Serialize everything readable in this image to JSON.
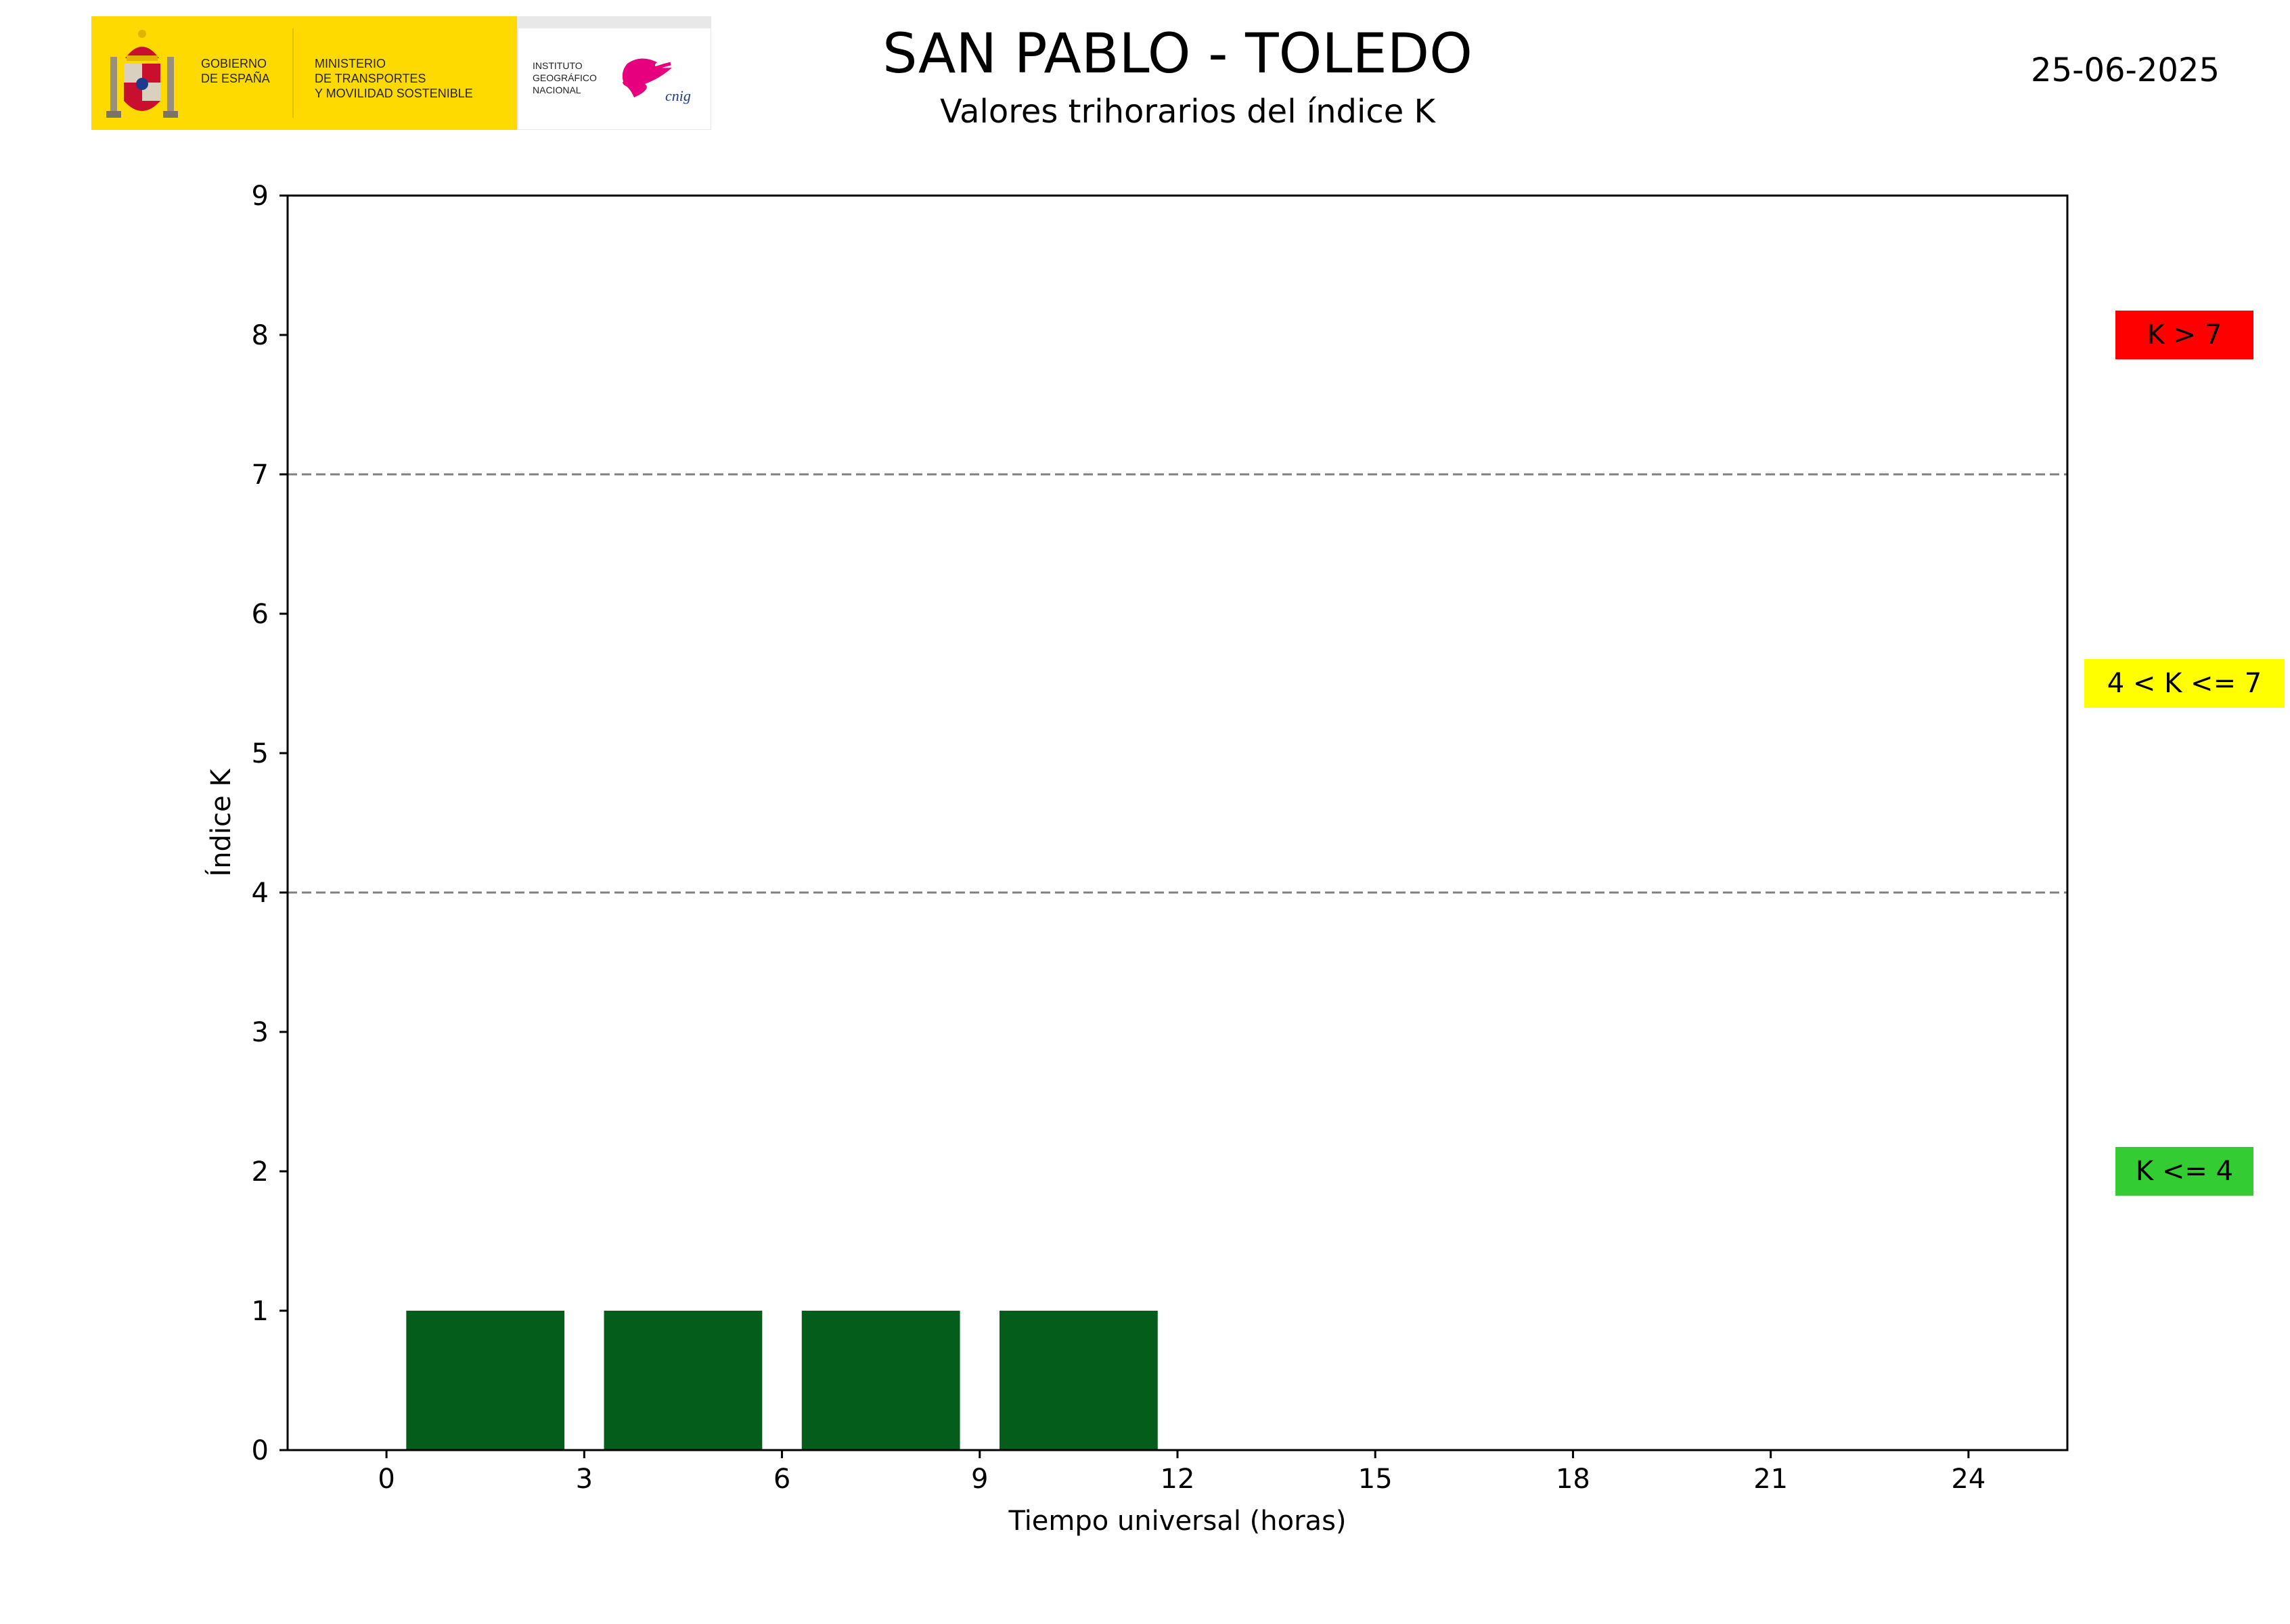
{
  "header": {
    "title": "SAN PABLO - TOLEDO",
    "subtitle": "Valores trihorarios del índice K",
    "date": "25-06-2025"
  },
  "logo": {
    "gov_line1": "GOBIERNO",
    "gov_line2": "DE ESPAÑA",
    "min_line1": "MINISTERIO",
    "min_line2": "DE TRANSPORTES",
    "min_line3": "Y MOVILIDAD SOSTENIBLE",
    "ign_line1": "INSTITUTO",
    "ign_line2": "GEOGRÁFICO",
    "ign_line3": "NACIONAL",
    "cnig": "cnig",
    "colors": {
      "yellow": "#FFDA00",
      "pink": "#E6007E"
    }
  },
  "chart_data": {
    "type": "bar",
    "xlabel": "Tiempo universal (horas)",
    "ylabel": "Índice K",
    "xlim": [
      -1.5,
      25.5
    ],
    "ylim": [
      0,
      9
    ],
    "xticks": [
      0,
      3,
      6,
      9,
      12,
      15,
      18,
      21,
      24
    ],
    "yticks": [
      0,
      1,
      2,
      3,
      4,
      5,
      6,
      7,
      8,
      9
    ],
    "bar_width_hours": 2.4,
    "bars": [
      {
        "x": 1.5,
        "k": 1
      },
      {
        "x": 4.5,
        "k": 1
      },
      {
        "x": 7.5,
        "k": 1
      },
      {
        "x": 10.5,
        "k": 1
      }
    ],
    "thresholds": [
      4,
      7
    ],
    "bar_color": "#045D1A",
    "threshold_color": "#808080",
    "levels": [
      {
        "label": "K > 7",
        "color": "#FF0000",
        "k": 8
      },
      {
        "label": "4 < K <= 7",
        "color": "#FFFF00",
        "k": 5.5
      },
      {
        "label": "K <= 4",
        "color": "#33CC33",
        "k": 2
      }
    ]
  }
}
